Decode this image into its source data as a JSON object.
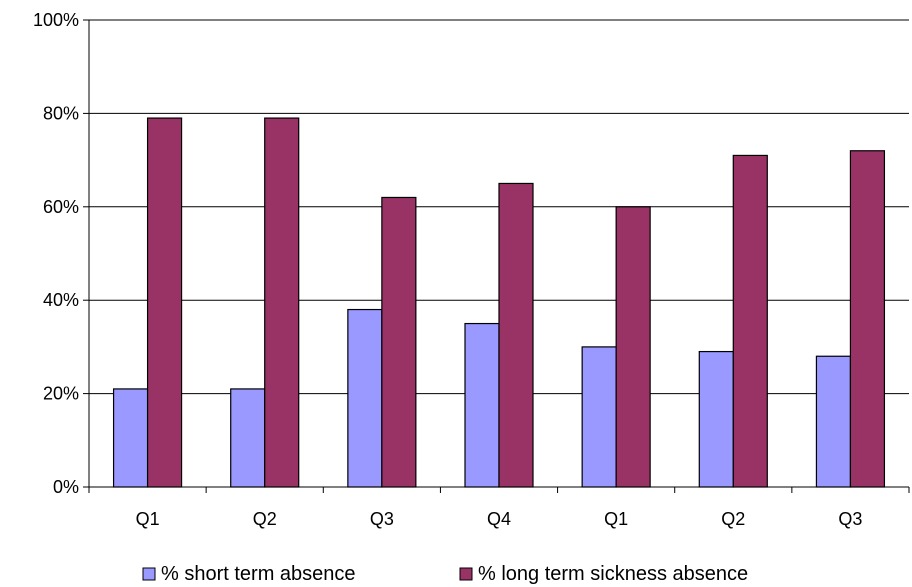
{
  "chart_data": {
    "type": "bar",
    "categories": [
      "Q1",
      "Q2",
      "Q3",
      "Q4",
      "Q1",
      "Q2",
      "Q3"
    ],
    "series": [
      {
        "name": "% short term absence",
        "values": [
          21,
          21,
          38,
          35,
          30,
          29,
          28
        ],
        "color": "#9999ff"
      },
      {
        "name": "% long term sickness absence",
        "values": [
          79,
          79,
          62,
          65,
          60,
          71,
          72
        ],
        "color": "#993366"
      }
    ],
    "ylim": [
      0,
      100
    ],
    "yticks": [
      "0%",
      "20%",
      "40%",
      "60%",
      "80%",
      "100%"
    ],
    "grid": true,
    "legend_position": "bottom"
  }
}
